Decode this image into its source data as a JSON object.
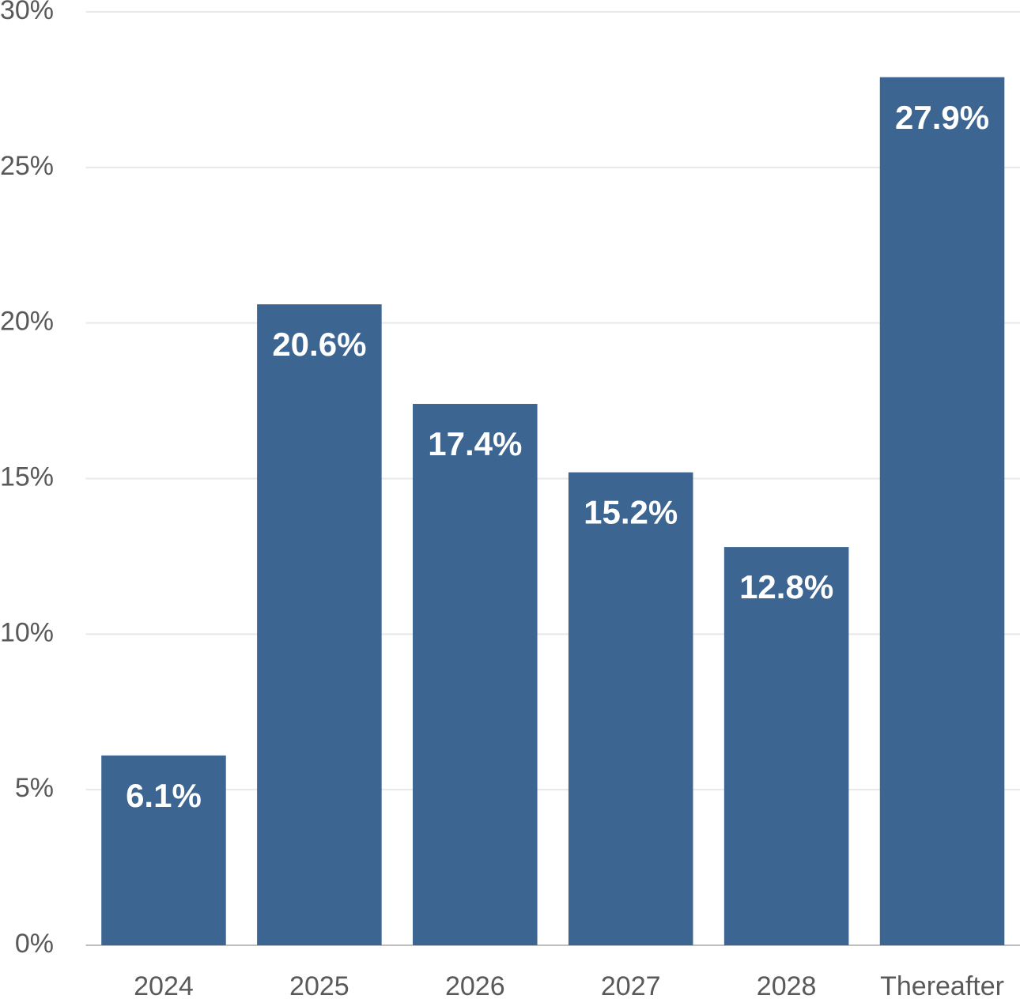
{
  "chart_data": {
    "type": "bar",
    "categories": [
      "2024",
      "2025",
      "2026",
      "2027",
      "2028",
      "Thereafter"
    ],
    "values": [
      6.1,
      20.6,
      17.4,
      15.2,
      12.8,
      27.9
    ],
    "value_labels": [
      "6.1%",
      "20.6%",
      "17.4%",
      "15.2%",
      "12.8%",
      "27.9%"
    ],
    "color": "#3d6591",
    "ylim": [
      0,
      30
    ],
    "yticks": [
      {
        "value": 0,
        "label": "0%"
      },
      {
        "value": 5,
        "label": "5%"
      },
      {
        "value": 10,
        "label": "10%"
      },
      {
        "value": 15,
        "label": "15%"
      },
      {
        "value": 20,
        "label": "20%"
      },
      {
        "value": 25,
        "label": "25%"
      },
      {
        "value": 30,
        "label": "30%"
      }
    ],
    "grid": true
  }
}
